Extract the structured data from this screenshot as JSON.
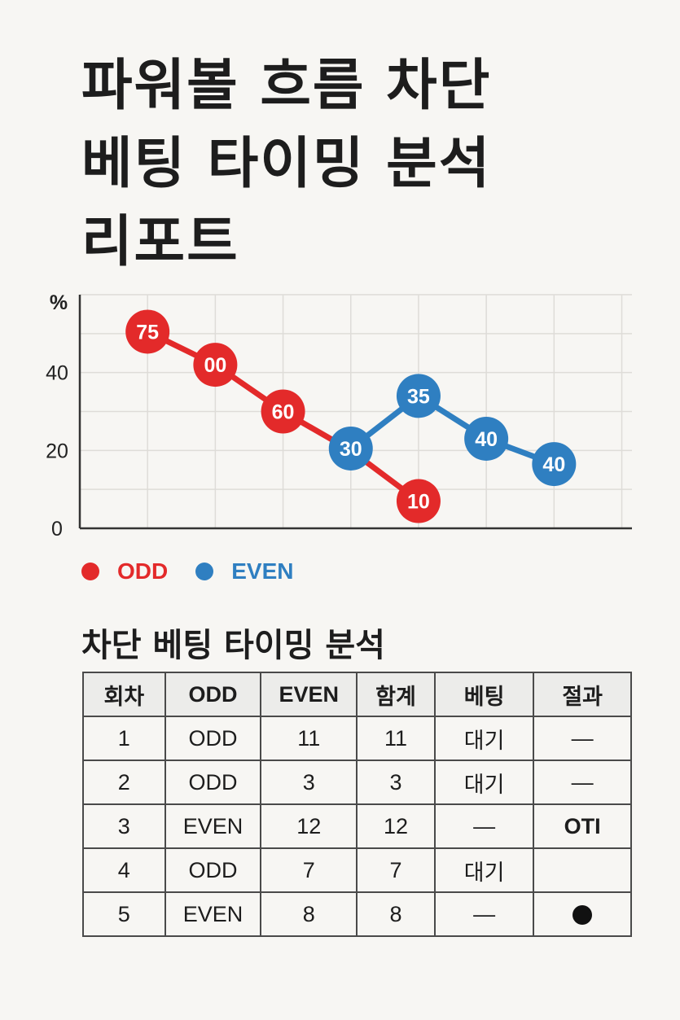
{
  "title": {
    "line1": "파워볼 흐름 차단",
    "line2": "베팅 타이밍 분석",
    "line3": "리포트"
  },
  "chart_data": {
    "type": "line",
    "ylabel": "%",
    "yticks": [
      "0",
      "20",
      "40"
    ],
    "ylim": [
      0,
      60
    ],
    "grid": true,
    "colors": {
      "odd": "#e32a2a",
      "even": "#2f7fc1"
    },
    "series": [
      {
        "name": "ODD",
        "x": [
          1,
          2,
          3,
          4,
          5
        ],
        "y": [
          50.5,
          42,
          30,
          20,
          7
        ],
        "labels": [
          "75",
          "00",
          "60",
          "",
          "10"
        ]
      },
      {
        "name": "EVEN",
        "x": [
          4,
          5,
          6,
          7
        ],
        "y": [
          20.5,
          34,
          23,
          16.5
        ],
        "labels": [
          "30",
          "35",
          "40",
          "40"
        ]
      }
    ]
  },
  "legend": {
    "odd": "ODD",
    "even": "EVEN"
  },
  "subtitle": "차단 베팅 타이밍 분석",
  "table": {
    "headers": [
      "회차",
      "ODD",
      "EVEN",
      "함계",
      "베팅",
      "절과"
    ],
    "rows": [
      [
        "1",
        "ODD",
        "11",
        "11",
        "대기",
        "—"
      ],
      [
        "2",
        "ODD",
        "3",
        "3",
        "대기",
        "—"
      ],
      [
        "3",
        "EVEN",
        "12",
        "12",
        "—",
        "OTI"
      ],
      [
        "4",
        "ODD",
        "7",
        "7",
        "대기",
        ""
      ],
      [
        "5",
        "EVEN",
        "8",
        "8",
        "—",
        ""
      ]
    ]
  }
}
